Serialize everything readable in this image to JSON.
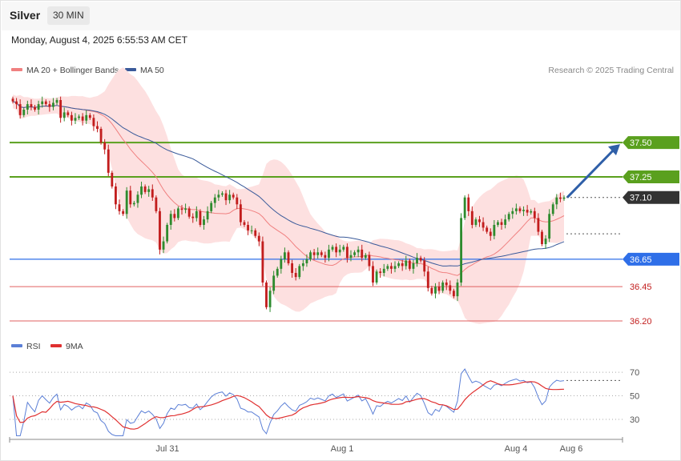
{
  "header": {
    "instrument": "Silver",
    "timeframe": "30 MIN",
    "datetime": "Monday, August 4, 2025 6:55:53 AM CET"
  },
  "legend": {
    "items": [
      {
        "label": "MA 20 + Bollinger Bands",
        "color": "#f08080"
      },
      {
        "label": "MA 50",
        "color": "#3a5a9a"
      }
    ],
    "copyright": "Research © 2025 Trading Central"
  },
  "colors": {
    "up": "#2e8b2e",
    "down": "#c21d1d",
    "resistance": "#5aa01e",
    "pivot": "#2f6fe8",
    "support": "#e06060",
    "last": "#333333",
    "band": "#fde0e0",
    "ma20": "#f08080",
    "ma50": "#3a5a9a",
    "rsi": "#5b7fd6",
    "rsi_ma": "#e03030",
    "arrow": "#2f5fa8"
  },
  "chart_data": [
    {
      "type": "candlestick",
      "title": "Silver",
      "timeframe": "30 MIN",
      "x_ticks": [
        "Jul 31",
        "Aug 1",
        "Aug 4",
        "Aug 6"
      ],
      "ylim": [
        36.13,
        37.95
      ],
      "levels": [
        {
          "value": 37.5,
          "label": "37.50",
          "kind": "resistance"
        },
        {
          "value": 37.25,
          "label": "37.25",
          "kind": "resistance"
        },
        {
          "value": 36.65,
          "label": "36.65",
          "kind": "pivot"
        },
        {
          "value": 36.45,
          "label": "36.45",
          "kind": "support"
        },
        {
          "value": 36.2,
          "label": "36.20",
          "kind": "support"
        }
      ],
      "last_price": {
        "value": 37.1,
        "label": "37.10"
      },
      "closes": [
        37.8,
        37.78,
        37.7,
        37.74,
        37.78,
        37.76,
        37.74,
        37.78,
        37.8,
        37.78,
        37.76,
        37.79,
        37.81,
        37.68,
        37.72,
        37.7,
        37.66,
        37.68,
        37.69,
        37.66,
        37.7,
        37.68,
        37.62,
        37.6,
        37.5,
        37.45,
        37.28,
        37.18,
        37.05,
        37.0,
        36.98,
        37.15,
        37.05,
        37.06,
        37.12,
        37.18,
        37.14,
        37.16,
        37.1,
        37.0,
        36.72,
        36.78,
        36.9,
        36.98,
        36.95,
        37.02,
        37.01,
        37.02,
        36.96,
        36.95,
        37.0,
        36.9,
        36.94,
        37.0,
        37.06,
        37.1,
        37.12,
        37.13,
        37.08,
        37.12,
        37.1,
        37.05,
        36.92,
        36.9,
        36.86,
        36.86,
        36.82,
        36.78,
        36.48,
        36.3,
        36.42,
        36.53,
        36.58,
        36.65,
        36.7,
        36.62,
        36.55,
        36.52,
        36.6,
        36.62,
        36.65,
        36.7,
        36.68,
        36.7,
        36.68,
        36.66,
        36.72,
        36.74,
        36.7,
        36.72,
        36.74,
        36.66,
        36.68,
        36.7,
        36.72,
        36.66,
        36.68,
        36.6,
        36.48,
        36.56,
        36.55,
        36.58,
        36.6,
        36.58,
        36.6,
        36.62,
        36.6,
        36.64,
        36.58,
        36.62,
        36.66,
        36.64,
        36.56,
        36.44,
        36.4,
        36.45,
        36.42,
        36.48,
        36.46,
        36.42,
        36.38,
        36.48,
        36.95,
        37.1,
        37.0,
        36.9,
        36.94,
        36.92,
        36.88,
        36.85,
        36.82,
        36.9,
        36.92,
        36.9,
        36.94,
        36.98,
        37.0,
        37.02,
        37.0,
        37.01,
        36.99,
        37.0,
        36.95,
        36.85,
        36.76,
        36.8,
        36.98,
        37.05,
        37.1,
        37.09,
        37.1
      ],
      "ma20_last": 36.98,
      "ma50_last": 36.8
    },
    {
      "type": "line",
      "title": "RSI",
      "series": [
        {
          "name": "RSI"
        },
        {
          "name": "9MA"
        }
      ],
      "y_ticks": [
        70,
        50,
        30
      ],
      "ylim": [
        15,
        83
      ],
      "rsi_last": 63,
      "rsi_ma_last": 52
    }
  ]
}
